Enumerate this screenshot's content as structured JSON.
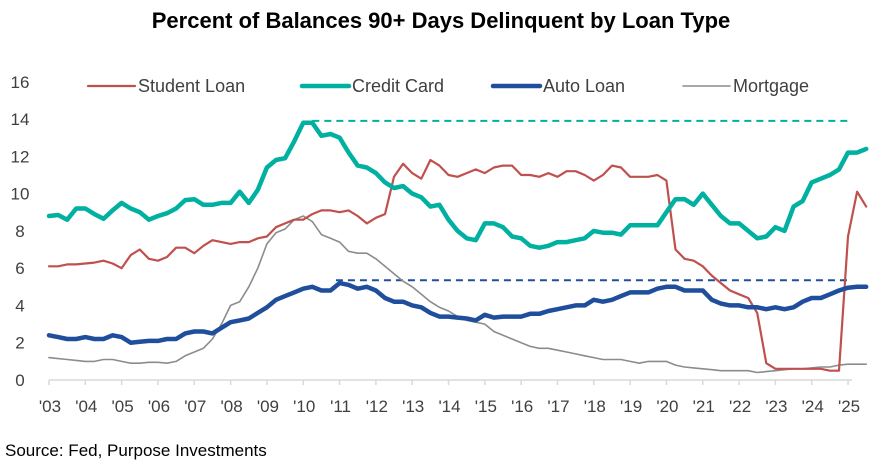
{
  "chart_data": {
    "type": "line",
    "title": "Percent of Balances 90+ Days Delinquent by Loan Type",
    "source": "Source: Fed, Purpose Investments",
    "xlabel": "",
    "ylabel": "",
    "ylim": [
      0,
      16
    ],
    "yticks": [
      "0",
      "2",
      "4",
      "6",
      "8",
      "10",
      "12",
      "14",
      "16"
    ],
    "xlim": [
      2003,
      2025.6
    ],
    "xticks": [
      "'03",
      "'04",
      "'05",
      "'06",
      "'07",
      "'08",
      "'09",
      "'10",
      "'11",
      "'12",
      "'13",
      "'14",
      "'15",
      "'16",
      "'17",
      "'18",
      "'19",
      "'20",
      "'21",
      "'22",
      "'23",
      "'24",
      "'25"
    ],
    "grid": false,
    "legend": "top",
    "x": [
      2003,
      2003.25,
      2003.5,
      2003.75,
      2004,
      2004.25,
      2004.5,
      2004.75,
      2005,
      2005.25,
      2005.5,
      2005.75,
      2006,
      2006.25,
      2006.5,
      2006.75,
      2007,
      2007.25,
      2007.5,
      2007.75,
      2008,
      2008.25,
      2008.5,
      2008.75,
      2009,
      2009.25,
      2009.5,
      2009.75,
      2010,
      2010.25,
      2010.5,
      2010.75,
      2011,
      2011.25,
      2011.5,
      2011.75,
      2012,
      2012.25,
      2012.5,
      2012.75,
      2013,
      2013.25,
      2013.5,
      2013.75,
      2014,
      2014.25,
      2014.5,
      2014.75,
      2015,
      2015.25,
      2015.5,
      2015.75,
      2016,
      2016.25,
      2016.5,
      2016.75,
      2017,
      2017.25,
      2017.5,
      2017.75,
      2018,
      2018.25,
      2018.5,
      2018.75,
      2019,
      2019.25,
      2019.5,
      2019.75,
      2020,
      2020.25,
      2020.5,
      2020.75,
      2021,
      2021.25,
      2021.5,
      2021.75,
      2022,
      2022.25,
      2022.5,
      2022.75,
      2023,
      2023.25,
      2023.5,
      2023.75,
      2024,
      2024.25,
      2024.5,
      2024.75,
      2025,
      2025.25,
      2025.5
    ],
    "series": [
      {
        "name": "Student Loan",
        "color": "#c0504d",
        "width": 2.2,
        "values": [
          6.1,
          6.1,
          6.2,
          6.2,
          6.25,
          6.3,
          6.4,
          6.25,
          6.0,
          6.7,
          7.0,
          6.5,
          6.4,
          6.6,
          7.1,
          7.1,
          6.8,
          7.2,
          7.5,
          7.4,
          7.3,
          7.4,
          7.4,
          7.6,
          7.7,
          8.2,
          8.4,
          8.6,
          8.6,
          8.9,
          9.1,
          9.1,
          9.0,
          9.1,
          8.8,
          8.4,
          8.7,
          8.9,
          10.9,
          11.6,
          11.1,
          10.8,
          11.8,
          11.5,
          11.0,
          10.9,
          11.1,
          11.3,
          11.1,
          11.4,
          11.5,
          11.5,
          11.0,
          11.0,
          10.9,
          11.1,
          10.9,
          11.2,
          11.2,
          11.0,
          10.7,
          11.0,
          11.5,
          11.4,
          10.9,
          10.9,
          10.9,
          11.0,
          10.7,
          7.0,
          6.5,
          6.4,
          6.1,
          5.6,
          5.2,
          4.8,
          4.6,
          4.4,
          3.6,
          0.9,
          0.6,
          0.6,
          0.6,
          0.6,
          0.6,
          0.6,
          0.5,
          0.5,
          7.7,
          10.1,
          9.3
        ]
      },
      {
        "name": "Credit Card",
        "color": "#00b0a0",
        "width": 4.5,
        "values": [
          8.8,
          8.85,
          8.6,
          9.2,
          9.2,
          8.9,
          8.65,
          9.1,
          9.5,
          9.2,
          9.0,
          8.6,
          8.8,
          8.95,
          9.2,
          9.65,
          9.7,
          9.4,
          9.4,
          9.5,
          9.5,
          10.1,
          9.5,
          10.2,
          11.4,
          11.8,
          11.9,
          12.8,
          13.8,
          13.8,
          13.1,
          13.2,
          13.0,
          12.2,
          11.5,
          11.4,
          11.1,
          10.6,
          10.3,
          10.4,
          10.0,
          9.8,
          9.3,
          9.4,
          8.6,
          8.0,
          7.6,
          7.5,
          8.4,
          8.4,
          8.2,
          7.7,
          7.6,
          7.2,
          7.1,
          7.2,
          7.4,
          7.4,
          7.5,
          7.6,
          8.0,
          7.9,
          7.9,
          7.8,
          8.3,
          8.3,
          8.3,
          8.3,
          9.0,
          9.7,
          9.7,
          9.4,
          10.0,
          9.4,
          8.8,
          8.4,
          8.4,
          8.0,
          7.6,
          7.7,
          8.2,
          8.0,
          9.3,
          9.6,
          10.6,
          10.8,
          11.0,
          11.3,
          12.2,
          12.2,
          12.4
        ]
      },
      {
        "name": "Auto Loan",
        "color": "#1f4e9c",
        "width": 4.5,
        "values": [
          2.4,
          2.3,
          2.2,
          2.2,
          2.3,
          2.2,
          2.2,
          2.4,
          2.3,
          2.0,
          2.05,
          2.1,
          2.1,
          2.2,
          2.2,
          2.5,
          2.6,
          2.6,
          2.5,
          2.8,
          3.1,
          3.2,
          3.3,
          3.6,
          3.9,
          4.3,
          4.5,
          4.7,
          4.9,
          5.0,
          4.8,
          4.8,
          5.2,
          5.1,
          4.9,
          5.0,
          4.8,
          4.4,
          4.2,
          4.2,
          4.0,
          3.9,
          3.6,
          3.4,
          3.4,
          3.35,
          3.3,
          3.2,
          3.5,
          3.35,
          3.4,
          3.4,
          3.4,
          3.55,
          3.55,
          3.7,
          3.8,
          3.9,
          4.0,
          4.0,
          4.3,
          4.2,
          4.3,
          4.5,
          4.7,
          4.7,
          4.7,
          4.9,
          5.0,
          5.0,
          4.8,
          4.8,
          4.8,
          4.3,
          4.1,
          4.0,
          4.0,
          3.9,
          3.9,
          3.8,
          3.9,
          3.8,
          3.9,
          4.2,
          4.4,
          4.4,
          4.6,
          4.8,
          4.95,
          5.0,
          5.0
        ]
      },
      {
        "name": "Mortgage",
        "color": "#8c8c8c",
        "width": 1.6,
        "values": [
          1.2,
          1.15,
          1.1,
          1.05,
          1.0,
          1.0,
          1.1,
          1.1,
          1.0,
          0.9,
          0.9,
          0.95,
          0.95,
          0.9,
          1.0,
          1.3,
          1.5,
          1.7,
          2.2,
          3.0,
          4.0,
          4.2,
          5.0,
          6.0,
          7.3,
          7.9,
          8.1,
          8.6,
          8.8,
          8.5,
          7.8,
          7.6,
          7.4,
          6.9,
          6.8,
          6.8,
          6.5,
          6.1,
          5.7,
          5.3,
          5.0,
          4.6,
          4.2,
          3.9,
          3.7,
          3.4,
          3.2,
          3.1,
          3.0,
          2.6,
          2.4,
          2.2,
          2.0,
          1.8,
          1.7,
          1.7,
          1.6,
          1.5,
          1.4,
          1.3,
          1.2,
          1.1,
          1.1,
          1.1,
          1.0,
          0.9,
          1.0,
          1.0,
          1.0,
          0.8,
          0.7,
          0.65,
          0.6,
          0.55,
          0.5,
          0.5,
          0.5,
          0.5,
          0.4,
          0.45,
          0.5,
          0.55,
          0.6,
          0.6,
          0.65,
          0.7,
          0.7,
          0.8,
          0.85,
          0.85,
          0.85
        ]
      }
    ],
    "reference_lines": [
      {
        "series": "Credit Card",
        "value": 13.9,
        "from_x": 2010.25,
        "style": "dashed",
        "color": "#00b0a0"
      },
      {
        "series": "Auto Loan",
        "value": 5.35,
        "from_x": 2010.9,
        "style": "dashed",
        "color": "#1f4e9c"
      }
    ]
  }
}
